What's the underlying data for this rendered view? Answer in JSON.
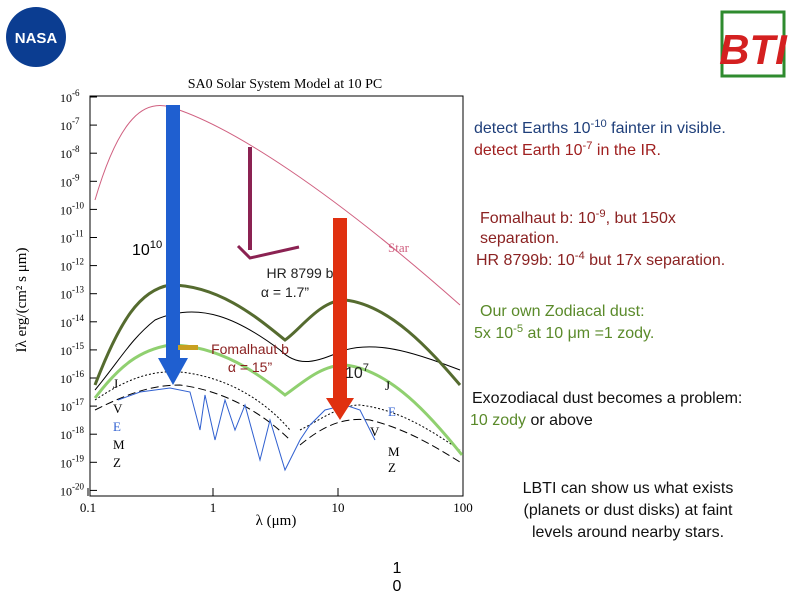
{
  "logos": {
    "left": "NASA",
    "right": "BTI"
  },
  "plot": {
    "title": "SA0 Solar System Model at 10 PC",
    "y_label": "Iλ erg/(cm² s μm)",
    "x_label": "λ (μm)",
    "y_tick_base": "10",
    "y_tick_exponents": [
      "-6",
      "-7",
      "-8",
      "-9",
      "-10",
      "-11",
      "-12",
      "-13",
      "-14",
      "-15",
      "-16",
      "-17",
      "-18",
      "-19",
      "-20"
    ],
    "x_ticks": [
      "0.1",
      "1",
      "10",
      "100"
    ],
    "curve_labels": {
      "star": "Star",
      "left": [
        "J",
        "V",
        "E",
        "M",
        "Z"
      ],
      "right": [
        "J",
        "E",
        "V",
        "M",
        "Z"
      ]
    }
  },
  "arrows": {
    "blue": {
      "base": "10",
      "exp": "10"
    },
    "red": {
      "base": "10",
      "exp": "7"
    },
    "hr8799": [
      "HR 8799 b",
      "α = 1.7”"
    ],
    "fomalhaut": [
      "Fomalhaut b",
      "α = 15”"
    ]
  },
  "notes": {
    "earths_visible": {
      "pre": "detect Earths 10",
      "sup": "-10",
      "post": " fainter in visible."
    },
    "earth_ir": {
      "pre": "detect Earth 10",
      "sup": "-7",
      "post": "  in the IR."
    },
    "fomalhaut": {
      "pre": "Fomalhaut b: 10",
      "sup": "-9",
      "post": ", but 150x",
      "line2": "separation.",
      "line3_pre": "HR 8799b: 10",
      "line3_sup": "-4",
      "line3_post": "  but 17x separation."
    },
    "zodi": {
      "line1": "Our own Zodiacal dust:",
      "pre": "5x 10",
      "sup": "-5",
      "post": " at 10 μm =1 zody."
    },
    "exozodi": {
      "line1": "Exozodiacal dust becomes a problem:",
      "green": "10 zody",
      "post": " or above"
    },
    "lbti": [
      "LBTI can show us what exists",
      "(planets or dust disks) at faint",
      "levels around nearby stars."
    ]
  },
  "page_number": "10"
}
